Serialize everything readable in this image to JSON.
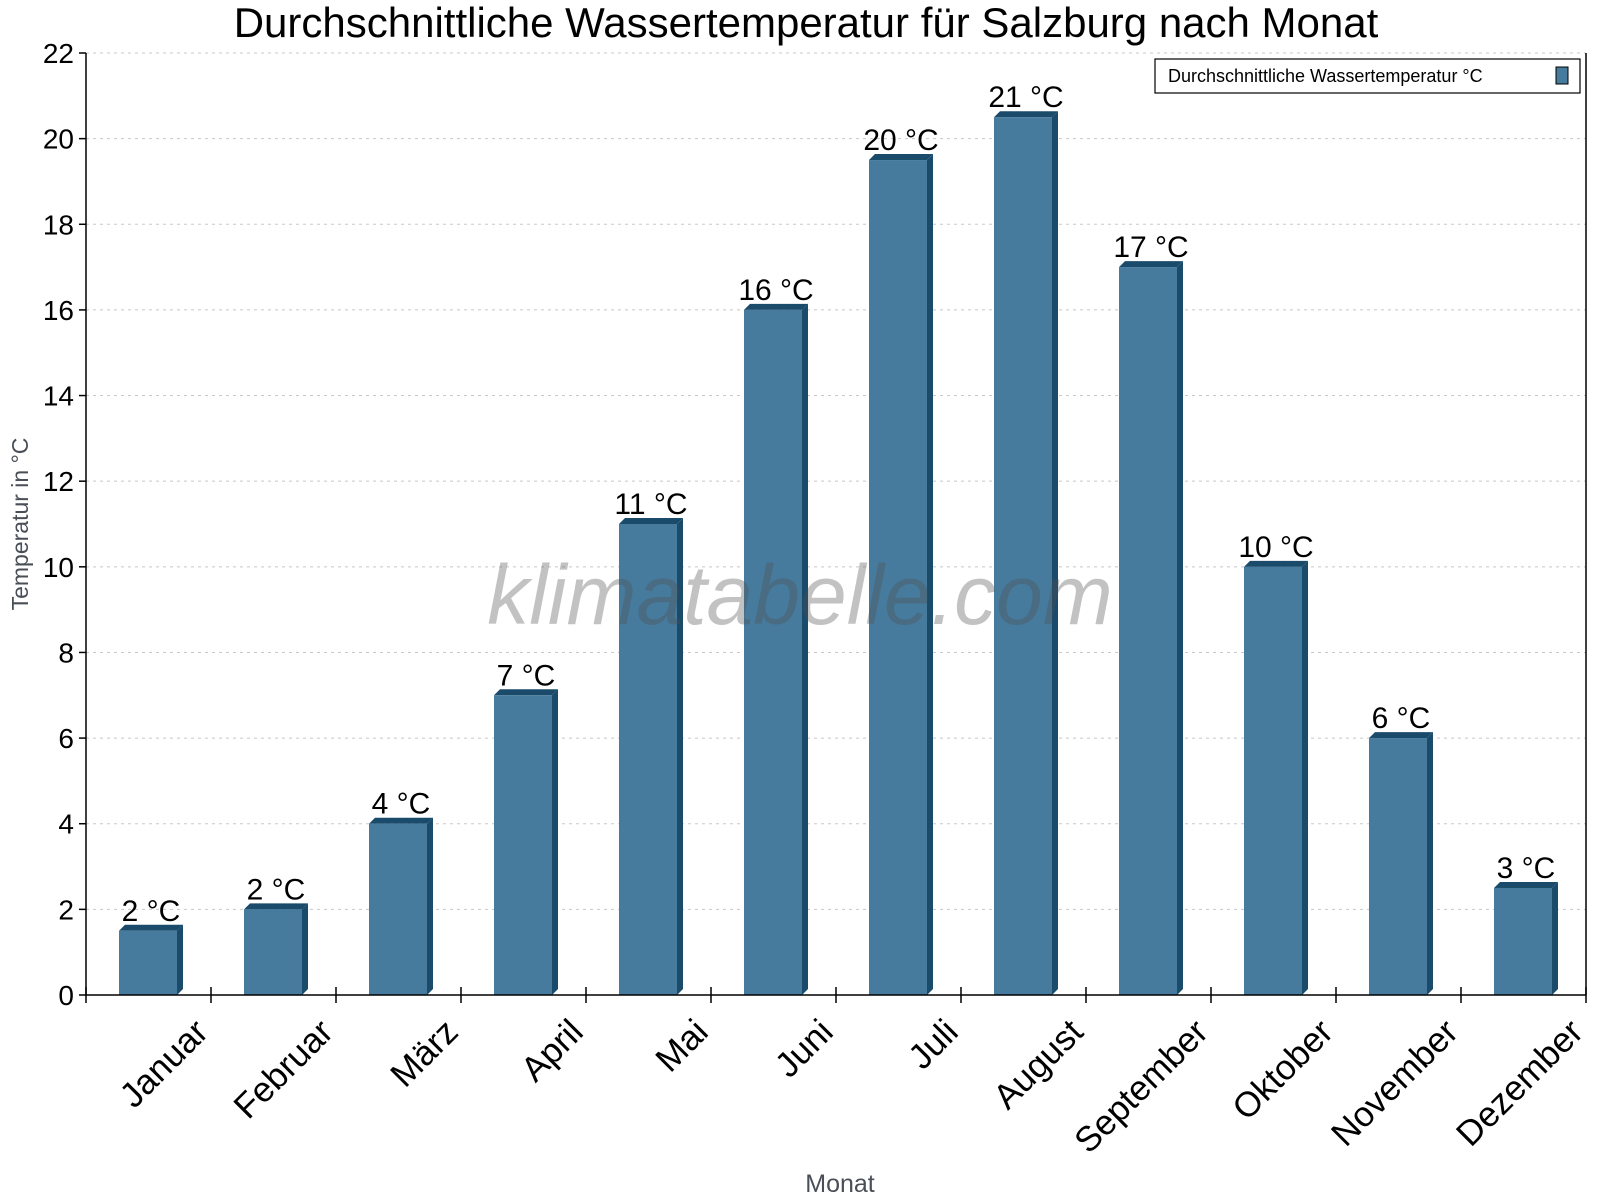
{
  "chart_data": {
    "type": "bar",
    "title": "Durchschnittliche Wassertemperatur für Salzburg nach Monat",
    "xlabel": "Monat",
    "ylabel": "Temperatur in °C",
    "categories": [
      "Januar",
      "Februar",
      "März",
      "April",
      "Mai",
      "Juni",
      "Juli",
      "August",
      "September",
      "Oktober",
      "November",
      "Dezember"
    ],
    "series": [
      {
        "name": "Durchschnittliche Wassertemperatur °C",
        "values": [
          1.5,
          2,
          4,
          7,
          11,
          16,
          19.5,
          20.5,
          17,
          10,
          6,
          2.5
        ],
        "data_labels": [
          "2 °C",
          "2 °C",
          "4 °C",
          "7 °C",
          "11 °C",
          "16 °C",
          "20 °C",
          "21 °C",
          "17 °C",
          "10 °C",
          "6 °C",
          "3 °C"
        ],
        "color": "#467b9d",
        "side_color": "#1b4b6b"
      }
    ],
    "ylim": [
      0,
      22
    ],
    "yticks": [
      0,
      2,
      4,
      6,
      8,
      10,
      12,
      14,
      16,
      18,
      20,
      22
    ],
    "grid": true,
    "legend_position": "top-right",
    "watermark": "klimatabelle.com"
  }
}
